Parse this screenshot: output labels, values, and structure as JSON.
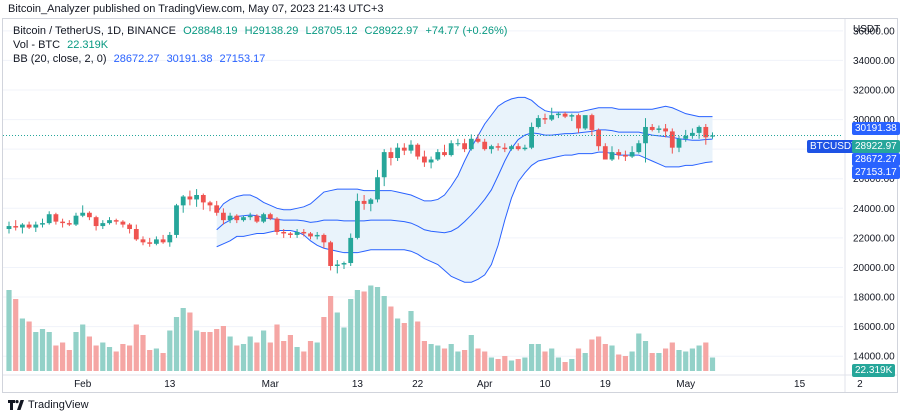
{
  "header": {
    "publisher_text": "Bitcoin_Analyzer published on TradingView.com, May 07, 2023 21:43 UTC+3"
  },
  "legend": {
    "symbol": "Bitcoin / TetherUS, 1D, BINANCE",
    "open": "O28848.19",
    "high": "H29138.29",
    "low": "L28705.12",
    "close": "C28922.97",
    "change": "+74.77 (+0.26%)",
    "vol_label": "Vol - BTC",
    "vol_value": "22.319K",
    "bb_label": "BB (20, close, 2, 0)",
    "bb_mid": "28672.27",
    "bb_upper": "30191.38",
    "bb_lower": "27153.17"
  },
  "price_axis": {
    "currency": "USDT",
    "tick_labels": [
      "36000.00",
      "34000.00",
      "32000.00",
      "30000.00",
      "28000.00",
      "26000.00",
      "24000.00",
      "22000.00",
      "20000.00",
      "18000.00",
      "16000.00",
      "14000.00"
    ]
  },
  "badges": {
    "upper": "30191.38",
    "symbol": "BTCUSDT",
    "price": "28922.97",
    "mid": "28672.27",
    "lower": "27153.17",
    "volume": "22.319K"
  },
  "time_axis": {
    "labels": [
      "Feb",
      "13",
      "Mar",
      "13",
      "22",
      "Apr",
      "10",
      "19",
      "May",
      "15",
      "2"
    ]
  },
  "footer": {
    "brand": "TradingView"
  },
  "colors": {
    "up": "#26a69a",
    "down": "#ef5350",
    "band": "#2962ff",
    "band_fill": "#e9f3fb",
    "vol_up": "#93d1c8",
    "vol_down": "#f5a6a4"
  },
  "chart_data": {
    "type": "candlestick",
    "symbol": "BTCUSDT",
    "interval": "1D",
    "start_date": "2023-01-21",
    "end_date": "2023-05-07",
    "y_range": [
      13000,
      36800
    ],
    "candles": [
      {
        "o": 22600,
        "h": 23100,
        "l": 22300,
        "c": 22800,
        "v": 5400
      },
      {
        "o": 22800,
        "h": 23200,
        "l": 22500,
        "c": 22700,
        "v": 4800
      },
      {
        "o": 22700,
        "h": 23000,
        "l": 22300,
        "c": 22900,
        "v": 3500
      },
      {
        "o": 22900,
        "h": 23100,
        "l": 22600,
        "c": 22700,
        "v": 3300
      },
      {
        "o": 22700,
        "h": 23100,
        "l": 22400,
        "c": 22900,
        "v": 2600
      },
      {
        "o": 22900,
        "h": 23300,
        "l": 22700,
        "c": 23000,
        "v": 2800
      },
      {
        "o": 23000,
        "h": 23800,
        "l": 22900,
        "c": 23600,
        "v": 2600
      },
      {
        "o": 23600,
        "h": 23700,
        "l": 22900,
        "c": 23100,
        "v": 1700
      },
      {
        "o": 23100,
        "h": 23300,
        "l": 22700,
        "c": 23000,
        "v": 1900
      },
      {
        "o": 23000,
        "h": 23200,
        "l": 22800,
        "c": 22900,
        "v": 1400
      },
      {
        "o": 22900,
        "h": 23700,
        "l": 22800,
        "c": 23500,
        "v": 2600
      },
      {
        "o": 23500,
        "h": 24200,
        "l": 23400,
        "c": 23700,
        "v": 3100
      },
      {
        "o": 23700,
        "h": 23800,
        "l": 23200,
        "c": 23400,
        "v": 2300
      },
      {
        "o": 23400,
        "h": 23500,
        "l": 22500,
        "c": 22800,
        "v": 1700
      },
      {
        "o": 22800,
        "h": 23200,
        "l": 22600,
        "c": 23000,
        "v": 1900
      },
      {
        "o": 23000,
        "h": 23400,
        "l": 22900,
        "c": 23200,
        "v": 1600
      },
      {
        "o": 23200,
        "h": 23300,
        "l": 22900,
        "c": 23100,
        "v": 1300
      },
      {
        "o": 23100,
        "h": 23200,
        "l": 22700,
        "c": 22900,
        "v": 1800
      },
      {
        "o": 22900,
        "h": 23000,
        "l": 22300,
        "c": 22600,
        "v": 1700
      },
      {
        "o": 22600,
        "h": 22900,
        "l": 21800,
        "c": 21900,
        "v": 3100
      },
      {
        "o": 21900,
        "h": 22100,
        "l": 21500,
        "c": 21700,
        "v": 2400
      },
      {
        "o": 21700,
        "h": 22000,
        "l": 21400,
        "c": 21600,
        "v": 1400
      },
      {
        "o": 21600,
        "h": 22100,
        "l": 21500,
        "c": 21900,
        "v": 1500
      },
      {
        "o": 21900,
        "h": 22200,
        "l": 21600,
        "c": 21700,
        "v": 1200
      },
      {
        "o": 21700,
        "h": 22400,
        "l": 21400,
        "c": 22200,
        "v": 2700
      },
      {
        "o": 22200,
        "h": 24300,
        "l": 22000,
        "c": 24200,
        "v": 3600
      },
      {
        "o": 24200,
        "h": 24900,
        "l": 23700,
        "c": 24800,
        "v": 4200
      },
      {
        "o": 24800,
        "h": 25200,
        "l": 24200,
        "c": 24600,
        "v": 3900
      },
      {
        "o": 24600,
        "h": 25300,
        "l": 24100,
        "c": 24900,
        "v": 2700
      },
      {
        "o": 24900,
        "h": 25000,
        "l": 23900,
        "c": 24400,
        "v": 2600
      },
      {
        "o": 24400,
        "h": 24500,
        "l": 23800,
        "c": 24200,
        "v": 2600
      },
      {
        "o": 24200,
        "h": 24500,
        "l": 23500,
        "c": 23700,
        "v": 2800
      },
      {
        "o": 23700,
        "h": 24000,
        "l": 22900,
        "c": 23200,
        "v": 3000
      },
      {
        "o": 23200,
        "h": 23700,
        "l": 23000,
        "c": 23500,
        "v": 2300
      },
      {
        "o": 23500,
        "h": 23600,
        "l": 23000,
        "c": 23200,
        "v": 1700
      },
      {
        "o": 23200,
        "h": 23500,
        "l": 23100,
        "c": 23400,
        "v": 1800
      },
      {
        "o": 23400,
        "h": 23700,
        "l": 23200,
        "c": 23500,
        "v": 2300
      },
      {
        "o": 23500,
        "h": 23600,
        "l": 23000,
        "c": 23100,
        "v": 1900
      },
      {
        "o": 23100,
        "h": 23700,
        "l": 23000,
        "c": 23600,
        "v": 2700
      },
      {
        "o": 23600,
        "h": 23700,
        "l": 23200,
        "c": 23300,
        "v": 1900
      },
      {
        "o": 23300,
        "h": 23400,
        "l": 22200,
        "c": 22400,
        "v": 3100
      },
      {
        "o": 22400,
        "h": 22600,
        "l": 22000,
        "c": 22300,
        "v": 2000
      },
      {
        "o": 22300,
        "h": 22400,
        "l": 22000,
        "c": 22200,
        "v": 2400
      },
      {
        "o": 22200,
        "h": 22600,
        "l": 22000,
        "c": 22400,
        "v": 1600
      },
      {
        "o": 22400,
        "h": 22600,
        "l": 22100,
        "c": 22300,
        "v": 1300
      },
      {
        "o": 22300,
        "h": 22400,
        "l": 21900,
        "c": 22100,
        "v": 2000
      },
      {
        "o": 22100,
        "h": 22400,
        "l": 21900,
        "c": 22200,
        "v": 1900
      },
      {
        "o": 22200,
        "h": 22300,
        "l": 21300,
        "c": 21700,
        "v": 3600
      },
      {
        "o": 21700,
        "h": 21800,
        "l": 19800,
        "c": 20100,
        "v": 5000
      },
      {
        "o": 20100,
        "h": 20500,
        "l": 19600,
        "c": 20200,
        "v": 3900
      },
      {
        "o": 20200,
        "h": 20400,
        "l": 19900,
        "c": 20300,
        "v": 2900
      },
      {
        "o": 20300,
        "h": 22300,
        "l": 20100,
        "c": 22000,
        "v": 4800
      },
      {
        "o": 22000,
        "h": 25000,
        "l": 21900,
        "c": 24500,
        "v": 5400
      },
      {
        "o": 24500,
        "h": 24900,
        "l": 23900,
        "c": 24300,
        "v": 5300
      },
      {
        "o": 24300,
        "h": 24700,
        "l": 23800,
        "c": 24600,
        "v": 5700
      },
      {
        "o": 24600,
        "h": 26600,
        "l": 24400,
        "c": 26100,
        "v": 5600
      },
      {
        "o": 26100,
        "h": 28000,
        "l": 25500,
        "c": 27800,
        "v": 5000
      },
      {
        "o": 27800,
        "h": 28100,
        "l": 26900,
        "c": 27400,
        "v": 4300
      },
      {
        "o": 27400,
        "h": 28400,
        "l": 27200,
        "c": 28100,
        "v": 3500
      },
      {
        "o": 28100,
        "h": 28400,
        "l": 27600,
        "c": 27900,
        "v": 3200
      },
      {
        "o": 27900,
        "h": 28600,
        "l": 27700,
        "c": 28300,
        "v": 4000
      },
      {
        "o": 28300,
        "h": 28400,
        "l": 27300,
        "c": 27500,
        "v": 3300
      },
      {
        "o": 27500,
        "h": 27900,
        "l": 26800,
        "c": 27100,
        "v": 2000
      },
      {
        "o": 27100,
        "h": 27500,
        "l": 26700,
        "c": 27300,
        "v": 1800
      },
      {
        "o": 27300,
        "h": 28000,
        "l": 27200,
        "c": 27800,
        "v": 1700
      },
      {
        "o": 27800,
        "h": 28300,
        "l": 27500,
        "c": 27600,
        "v": 1500
      },
      {
        "o": 27600,
        "h": 28600,
        "l": 27500,
        "c": 28400,
        "v": 1800
      },
      {
        "o": 28400,
        "h": 28700,
        "l": 28200,
        "c": 28400,
        "v": 1300
      },
      {
        "o": 28400,
        "h": 28700,
        "l": 27800,
        "c": 28000,
        "v": 1400
      },
      {
        "o": 28000,
        "h": 29000,
        "l": 27900,
        "c": 28700,
        "v": 2400
      },
      {
        "o": 28700,
        "h": 29000,
        "l": 28400,
        "c": 28500,
        "v": 1500
      },
      {
        "o": 28500,
        "h": 28700,
        "l": 27900,
        "c": 28000,
        "v": 1300
      },
      {
        "o": 28000,
        "h": 28300,
        "l": 27700,
        "c": 28200,
        "v": 900
      },
      {
        "o": 28200,
        "h": 28400,
        "l": 27900,
        "c": 28100,
        "v": 800
      },
      {
        "o": 28100,
        "h": 28400,
        "l": 27800,
        "c": 28000,
        "v": 1000
      },
      {
        "o": 28000,
        "h": 28300,
        "l": 27900,
        "c": 28200,
        "v": 700
      },
      {
        "o": 28200,
        "h": 28400,
        "l": 27900,
        "c": 28000,
        "v": 800
      },
      {
        "o": 28000,
        "h": 28300,
        "l": 27900,
        "c": 28100,
        "v": 900
      },
      {
        "o": 28100,
        "h": 29800,
        "l": 28000,
        "c": 29500,
        "v": 1800
      },
      {
        "o": 29500,
        "h": 30300,
        "l": 29400,
        "c": 30100,
        "v": 1800
      },
      {
        "o": 30100,
        "h": 30400,
        "l": 29700,
        "c": 30000,
        "v": 1300
      },
      {
        "o": 30000,
        "h": 30800,
        "l": 29900,
        "c": 30300,
        "v": 1500
      },
      {
        "o": 30300,
        "h": 30500,
        "l": 30100,
        "c": 30400,
        "v": 900
      },
      {
        "o": 30400,
        "h": 30500,
        "l": 30100,
        "c": 30200,
        "v": 600
      },
      {
        "o": 30200,
        "h": 30400,
        "l": 29900,
        "c": 30300,
        "v": 800
      },
      {
        "o": 30300,
        "h": 30400,
        "l": 29100,
        "c": 29400,
        "v": 1500
      },
      {
        "o": 29400,
        "h": 30200,
        "l": 29300,
        "c": 30300,
        "v": 1200
      },
      {
        "o": 30300,
        "h": 30400,
        "l": 28900,
        "c": 29300,
        "v": 2100
      },
      {
        "o": 29300,
        "h": 29400,
        "l": 27900,
        "c": 28200,
        "v": 2300
      },
      {
        "o": 28200,
        "h": 28400,
        "l": 27400,
        "c": 27300,
        "v": 1800
      },
      {
        "o": 27300,
        "h": 28200,
        "l": 27200,
        "c": 27800,
        "v": 1700
      },
      {
        "o": 27800,
        "h": 28000,
        "l": 27300,
        "c": 27600,
        "v": 1100
      },
      {
        "o": 27600,
        "h": 27900,
        "l": 27200,
        "c": 27500,
        "v": 1000
      },
      {
        "o": 27500,
        "h": 28200,
        "l": 27400,
        "c": 27800,
        "v": 1300
      },
      {
        "o": 27800,
        "h": 28600,
        "l": 27700,
        "c": 28400,
        "v": 2500
      },
      {
        "o": 28400,
        "h": 30100,
        "l": 27100,
        "c": 29500,
        "v": 2000
      },
      {
        "o": 29500,
        "h": 29700,
        "l": 29200,
        "c": 29300,
        "v": 1200
      },
      {
        "o": 29300,
        "h": 29600,
        "l": 29100,
        "c": 29400,
        "v": 1200
      },
      {
        "o": 29400,
        "h": 29700,
        "l": 28800,
        "c": 29200,
        "v": 1500
      },
      {
        "o": 29200,
        "h": 29400,
        "l": 27700,
        "c": 28100,
        "v": 1900
      },
      {
        "o": 28100,
        "h": 28900,
        "l": 27800,
        "c": 28700,
        "v": 1400
      },
      {
        "o": 28700,
        "h": 29300,
        "l": 28500,
        "c": 28900,
        "v": 1300
      },
      {
        "o": 28900,
        "h": 29400,
        "l": 28700,
        "c": 29100,
        "v": 1500
      },
      {
        "o": 29100,
        "h": 29600,
        "l": 28700,
        "c": 29500,
        "v": 1700
      },
      {
        "o": 29500,
        "h": 29700,
        "l": 28300,
        "c": 28800,
        "v": 1900
      },
      {
        "o": 28848,
        "h": 29138,
        "l": 28705,
        "c": 28923,
        "v": 900
      }
    ],
    "bollinger": {
      "period": 20,
      "upper": [
        23700,
        24300,
        24600,
        24800,
        24900,
        24900,
        24700,
        24400,
        24200,
        24000,
        23900,
        23900,
        24000,
        24100,
        24300,
        24700,
        25100,
        25200,
        25300,
        25300,
        25300,
        25300,
        25200,
        25200,
        25200,
        25200,
        25200,
        25100,
        25000,
        24900,
        24700,
        24500,
        24500,
        24600,
        24900,
        25500,
        26200,
        27200,
        28100,
        28900,
        29700,
        30300,
        30900,
        31200,
        31400,
        31500,
        31500,
        31300,
        30900,
        30600,
        30500,
        30500,
        30500,
        30500,
        30500,
        30600,
        30700,
        30800,
        30800,
        30800,
        30700,
        30700,
        30700,
        30700,
        30700,
        30700,
        30800,
        30900,
        30800,
        30600,
        30400,
        30300,
        30200,
        30200,
        30200
      ],
      "lower": [
        21400,
        21600,
        21800,
        22100,
        22100,
        22200,
        22300,
        22300,
        22400,
        22500,
        22500,
        22500,
        22400,
        22200,
        21800,
        21500,
        21300,
        21200,
        21100,
        21000,
        21000,
        21000,
        21100,
        21200,
        21200,
        21200,
        21200,
        21200,
        21200,
        21100,
        20900,
        20600,
        20400,
        20200,
        19800,
        19400,
        19200,
        19000,
        19000,
        19200,
        19500,
        20200,
        21500,
        23200,
        24700,
        25800,
        26400,
        26900,
        27200,
        27300,
        27400,
        27500,
        27600,
        27600,
        27700,
        27700,
        27700,
        27800,
        27800,
        27700,
        27600,
        27600,
        27600,
        27600,
        27400,
        27200,
        27000,
        26800,
        26800,
        26800,
        26900,
        26900,
        27000,
        27100,
        27150
      ]
    },
    "volume_note": "volume bars in panel; color follows candle direction",
    "last_price": 28922.97,
    "tick_labels_note": "price axis 14000–36000 step 2000"
  }
}
